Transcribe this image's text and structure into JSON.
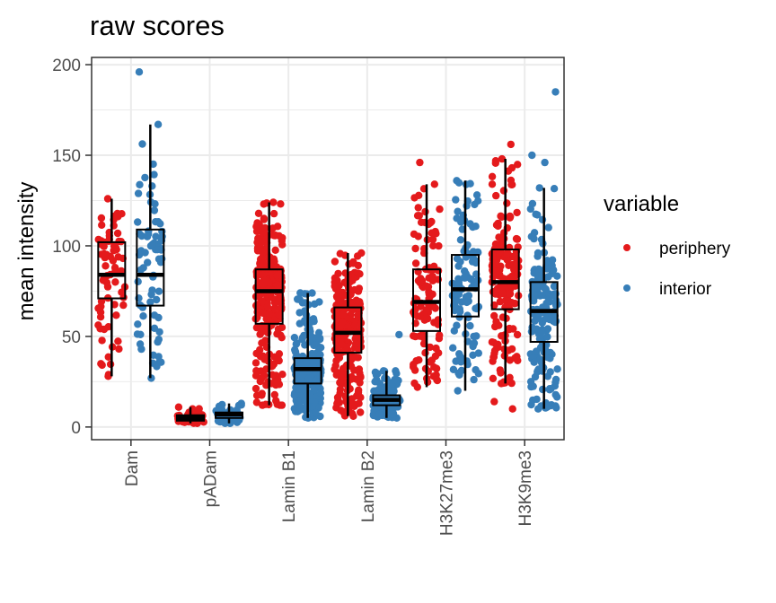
{
  "chart_data": {
    "type": "box",
    "title": "raw scores",
    "xlabel": "",
    "ylabel": "mean intensity",
    "ylim": [
      -7,
      204
    ],
    "yticks": [
      0,
      50,
      100,
      150,
      200
    ],
    "grid": true,
    "categories": [
      "Dam",
      "pADam",
      "Lamin B1",
      "Lamin B2",
      "H3K27me3",
      "H3K9me3"
    ],
    "legend": {
      "title": "variable",
      "position": "right"
    },
    "series": [
      {
        "name": "periphery",
        "color": "#E41A1C",
        "n_points": [
          70,
          45,
          260,
          240,
          110,
          170
        ],
        "boxes": [
          {
            "whisker_low": 28,
            "q1": 71,
            "median": 84,
            "q3": 102,
            "whisker_high": 126,
            "outliers": []
          },
          {
            "whisker_low": 2,
            "q1": 3.5,
            "median": 5,
            "q3": 6.5,
            "whisker_high": 11,
            "outliers": []
          },
          {
            "whisker_low": 12,
            "q1": 57,
            "median": 75,
            "q3": 87,
            "whisker_high": 124,
            "outliers": []
          },
          {
            "whisker_low": 6,
            "q1": 41,
            "median": 52,
            "q3": 66,
            "whisker_high": 96,
            "outliers": []
          },
          {
            "whisker_low": 22,
            "q1": 53,
            "median": 69,
            "q3": 87,
            "whisker_high": 134,
            "outliers": [
              146
            ]
          },
          {
            "whisker_low": 24,
            "q1": 65,
            "median": 80,
            "q3": 98,
            "whisker_high": 148,
            "outliers": [
              14,
              10,
              156
            ]
          }
        ]
      },
      {
        "name": "interior",
        "color": "#377EB8",
        "n_points": [
          70,
          45,
          260,
          140,
          110,
          170
        ],
        "boxes": [
          {
            "whisker_low": 27,
            "q1": 67,
            "median": 84,
            "q3": 109,
            "whisker_high": 167,
            "outliers": [
              196
            ]
          },
          {
            "whisker_low": 2,
            "q1": 5,
            "median": 7,
            "q3": 8,
            "whisker_high": 13,
            "outliers": []
          },
          {
            "whisker_low": 5,
            "q1": 24,
            "median": 32,
            "q3": 38,
            "whisker_high": 74,
            "outliers": []
          },
          {
            "whisker_low": 5,
            "q1": 12,
            "median": 15,
            "q3": 17.5,
            "whisker_high": 31,
            "outliers": [
              51
            ]
          },
          {
            "whisker_low": 20,
            "q1": 61,
            "median": 76,
            "q3": 95,
            "whisker_high": 136,
            "outliers": []
          },
          {
            "whisker_low": 10,
            "q1": 47,
            "median": 64,
            "q3": 80,
            "whisker_high": 132,
            "outliers": [
              146,
              150,
              185
            ]
          }
        ]
      }
    ]
  }
}
